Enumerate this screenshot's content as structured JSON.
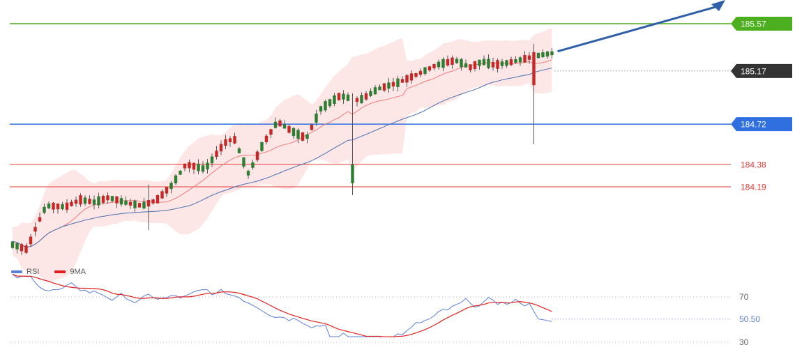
{
  "chart_data": [
    {
      "type": "candlestick",
      "ylim": [
        183.5,
        185.8
      ],
      "bollinger_band": true,
      "moving_averages": [
        "ma-fast",
        "ma-slow"
      ],
      "horizontal_levels": [
        {
          "value": 185.57,
          "label": "185.57",
          "color": "#4caf1f",
          "label_style": "box"
        },
        {
          "value": 185.17,
          "label": "185.17",
          "color": "#333333",
          "label_style": "box",
          "line": "dotted"
        },
        {
          "value": 184.72,
          "label": "184.72",
          "color": "#2f6fe0",
          "label_style": "box"
        },
        {
          "value": 184.38,
          "label": "184.38",
          "color": "#e53935",
          "label_style": "text"
        },
        {
          "value": 184.19,
          "label": "184.19",
          "color": "#e53935",
          "label_style": "text"
        }
      ],
      "target_arrow": {
        "direction": "up",
        "color": "#2e5fa8"
      },
      "colors": {
        "up": "#2e7d32",
        "down": "#c62828",
        "band": "#fde3e3",
        "ma_fast": "#ef7b7b",
        "ma_slow": "#4a6fb0"
      }
    },
    {
      "type": "line",
      "legend": [
        {
          "name": "RSI",
          "color": "#5b7fd6"
        },
        {
          "name": "9MA",
          "color": "#e02020"
        }
      ],
      "levels": [
        {
          "value": 70,
          "label": "70"
        },
        {
          "value": 30,
          "label": "30"
        }
      ],
      "current": {
        "value": 50.5,
        "label": "50.50"
      }
    }
  ]
}
